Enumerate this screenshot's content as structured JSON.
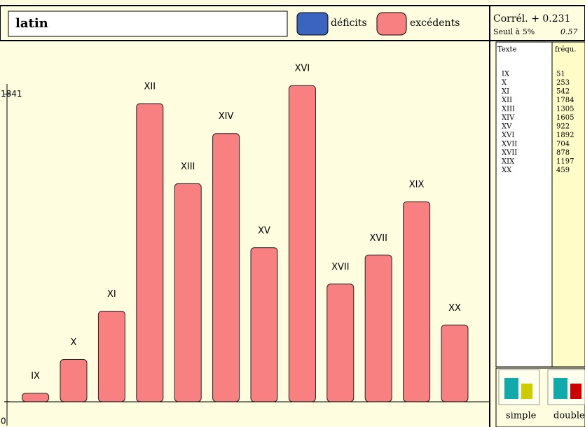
{
  "chart_data": {
    "type": "bar",
    "title": "latin",
    "legend": [
      "déficits",
      "excédents"
    ],
    "legend_colors": [
      "#3a64c0",
      "#f88080"
    ],
    "categories": [
      "IX",
      "X",
      "XI",
      "XII",
      "XIII",
      "XIV",
      "XV",
      "XVI",
      "XVII",
      "XVII",
      "XIX",
      "XX"
    ],
    "values": [
      51,
      253,
      542,
      1784,
      1305,
      1605,
      922,
      1892,
      704,
      878,
      1197,
      459
    ],
    "color": "#f88080",
    "ylim": [
      -143,
      2161
    ],
    "yticks": [
      0,
      1841
    ]
  },
  "side_panel": {
    "correlation": "Corrél. + 0.231",
    "threshold": "Seuil à 5%",
    "threshold_value": "0.57",
    "table_headers": [
      "Texte",
      "fréqu."
    ],
    "buttons": [
      "simple",
      "double"
    ]
  }
}
